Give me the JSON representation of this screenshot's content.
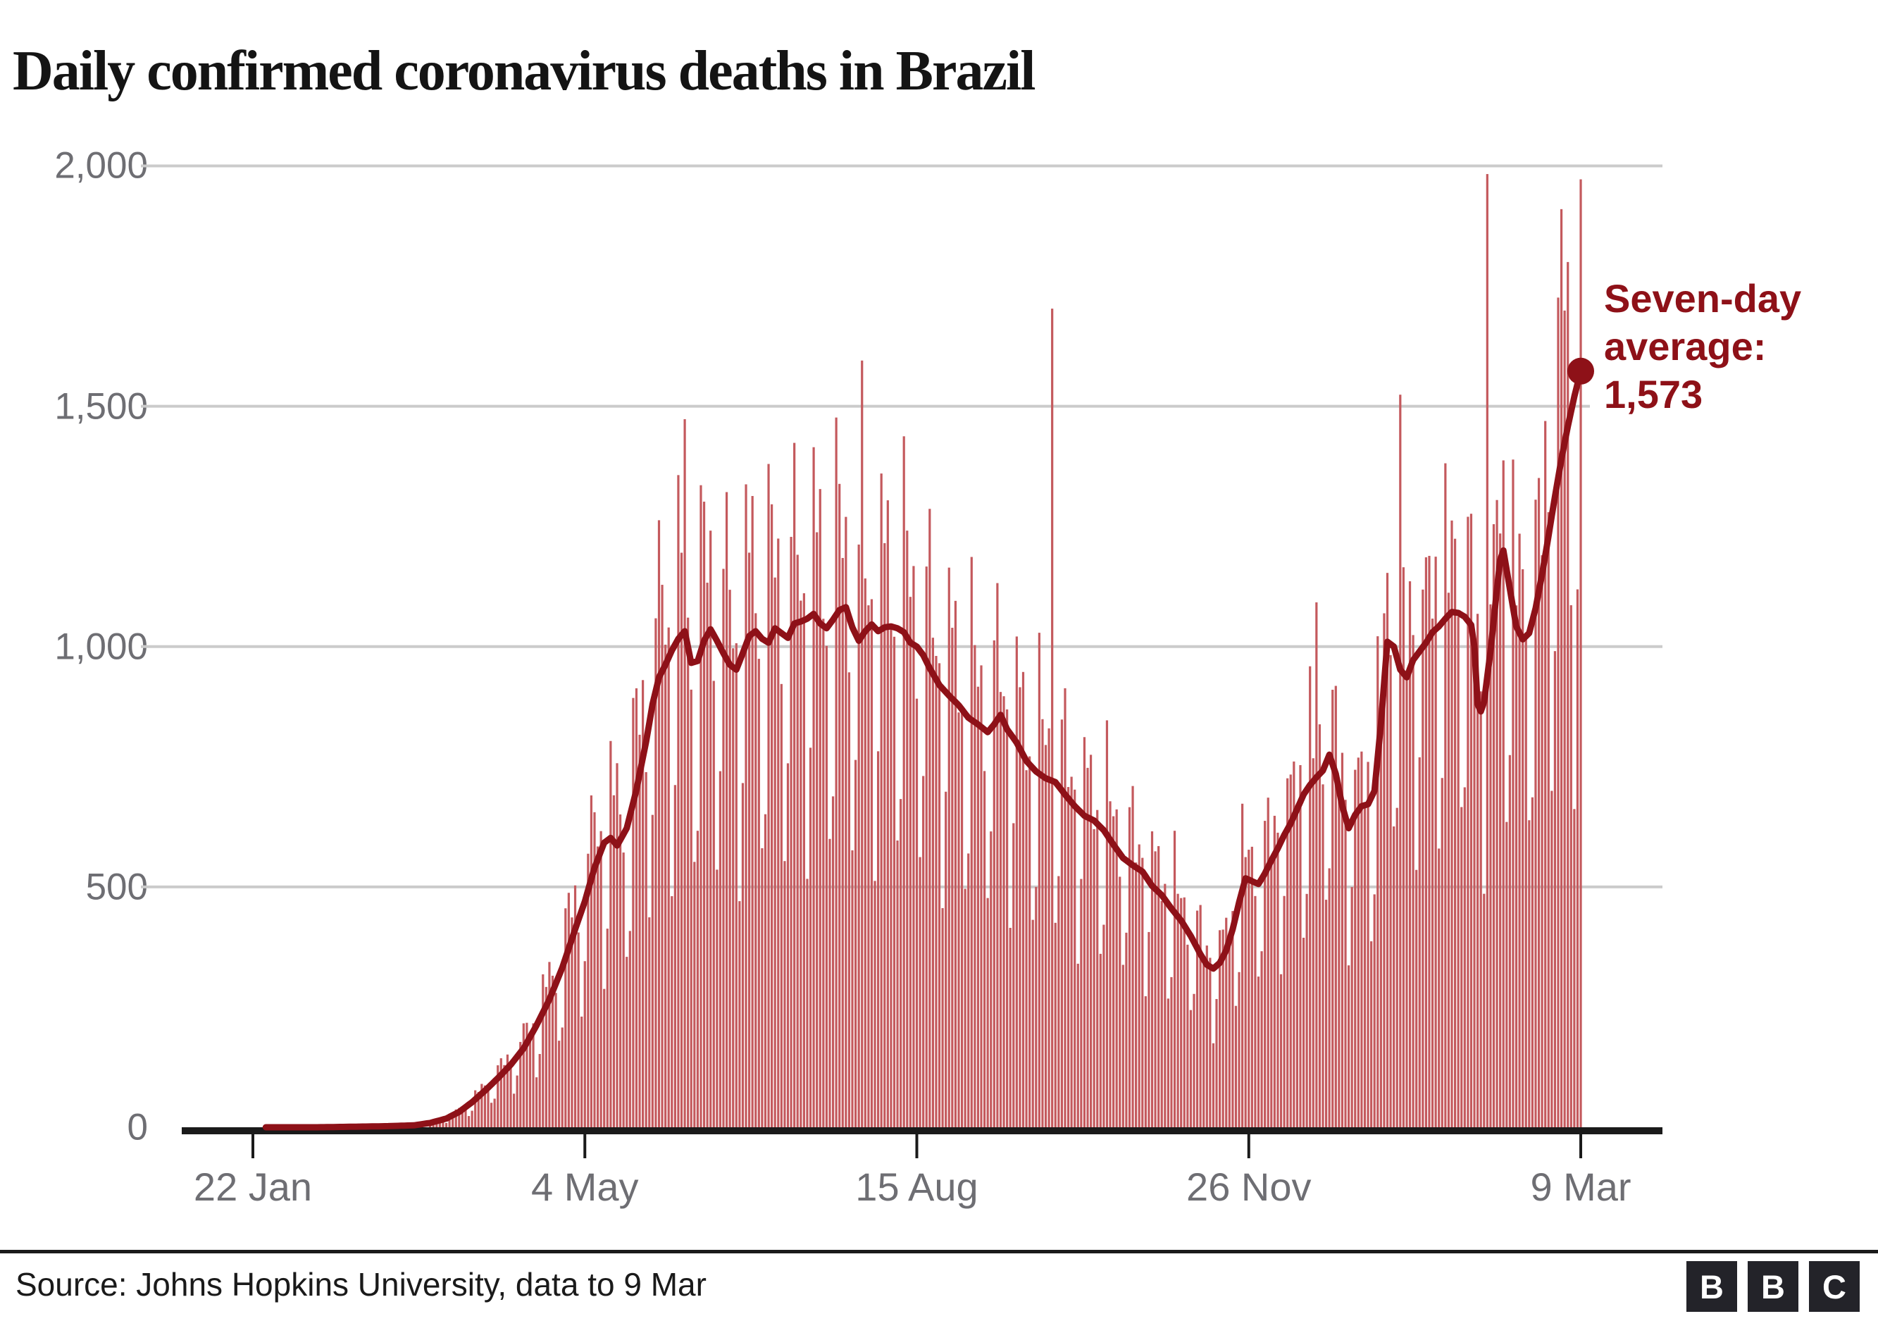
{
  "title": "Daily confirmed coronavirus deaths in Brazil",
  "annotation": {
    "line1": "Seven-day",
    "line2": "average:",
    "line3": "1,573"
  },
  "source": {
    "text": "Source: Johns Hopkins University, data to 9 Mar"
  },
  "logo": {
    "letters": [
      "B",
      "B",
      "C"
    ]
  },
  "colors": {
    "bar": "#C4595D",
    "avg_line": "#8E1118",
    "annotation_text": "#8E1118",
    "title_text": "#141414",
    "axis_labels": "#6E6E73",
    "gridline": "#CBCBCB",
    "axis_line": "#1A1A1A",
    "source_text": "#1A1A1A",
    "logo_block": "#232329"
  },
  "chart_data": {
    "type": "bar",
    "title": "Daily confirmed coronavirus deaths in Brazil",
    "xlabel": "",
    "ylabel": "",
    "x_axis": {
      "start_date": "22 Jan",
      "end_date": "9 Mar",
      "tick_labels": [
        "22 Jan",
        "4 May",
        "15 Aug",
        "26 Nov",
        "9 Mar"
      ],
      "tick_days": [
        0,
        103,
        206,
        309,
        412
      ],
      "total_days": 412
    },
    "y_axis": {
      "tick_labels": [
        "0",
        "500",
        "1,000",
        "1,500",
        "2,000"
      ],
      "tick_values": [
        0,
        500,
        1000,
        1500,
        2000
      ],
      "ylim": [
        0,
        2060
      ],
      "grid": true
    },
    "series": [
      {
        "name": "Daily confirmed deaths",
        "type": "bar"
      },
      {
        "name": "Seven-day average",
        "type": "line",
        "final_value": 1573,
        "final_label": "Seven-day average: 1,573"
      }
    ],
    "seven_day_avg_points": [
      [
        0,
        0
      ],
      [
        20,
        0
      ],
      [
        40,
        2
      ],
      [
        50,
        4
      ],
      [
        55,
        9
      ],
      [
        60,
        18
      ],
      [
        64,
        32
      ],
      [
        68,
        52
      ],
      [
        72,
        76
      ],
      [
        76,
        102
      ],
      [
        80,
        130
      ],
      [
        84,
        164
      ],
      [
        88,
        212
      ],
      [
        92,
        266
      ],
      [
        96,
        332
      ],
      [
        100,
        412
      ],
      [
        103,
        470
      ],
      [
        106,
        540
      ],
      [
        109,
        592
      ],
      [
        111,
        602
      ],
      [
        113,
        586
      ],
      [
        116,
        622
      ],
      [
        119,
        702
      ],
      [
        122,
        802
      ],
      [
        124,
        880
      ],
      [
        126,
        936
      ],
      [
        128,
        962
      ],
      [
        130,
        992
      ],
      [
        132,
        1016
      ],
      [
        134,
        1032
      ],
      [
        136,
        966
      ],
      [
        138,
        970
      ],
      [
        140,
        1012
      ],
      [
        142,
        1036
      ],
      [
        144,
        1012
      ],
      [
        146,
        986
      ],
      [
        148,
        962
      ],
      [
        150,
        952
      ],
      [
        152,
        986
      ],
      [
        154,
        1022
      ],
      [
        156,
        1032
      ],
      [
        158,
        1016
      ],
      [
        160,
        1008
      ],
      [
        162,
        1038
      ],
      [
        164,
        1028
      ],
      [
        166,
        1018
      ],
      [
        168,
        1048
      ],
      [
        170,
        1052
      ],
      [
        172,
        1058
      ],
      [
        174,
        1068
      ],
      [
        176,
        1048
      ],
      [
        178,
        1038
      ],
      [
        180,
        1056
      ],
      [
        182,
        1076
      ],
      [
        184,
        1082
      ],
      [
        186,
        1040
      ],
      [
        188,
        1012
      ],
      [
        190,
        1032
      ],
      [
        192,
        1046
      ],
      [
        194,
        1032
      ],
      [
        196,
        1040
      ],
      [
        198,
        1042
      ],
      [
        200,
        1038
      ],
      [
        202,
        1030
      ],
      [
        204,
        1008
      ],
      [
        206,
        1000
      ],
      [
        208,
        982
      ],
      [
        210,
        955
      ],
      [
        213,
        920
      ],
      [
        216,
        898
      ],
      [
        219,
        878
      ],
      [
        222,
        852
      ],
      [
        225,
        838
      ],
      [
        228,
        822
      ],
      [
        230,
        838
      ],
      [
        232,
        858
      ],
      [
        234,
        828
      ],
      [
        237,
        800
      ],
      [
        240,
        762
      ],
      [
        243,
        740
      ],
      [
        246,
        726
      ],
      [
        249,
        718
      ],
      [
        252,
        692
      ],
      [
        255,
        668
      ],
      [
        258,
        648
      ],
      [
        261,
        638
      ],
      [
        264,
        618
      ],
      [
        267,
        588
      ],
      [
        270,
        560
      ],
      [
        273,
        545
      ],
      [
        276,
        532
      ],
      [
        279,
        502
      ],
      [
        282,
        483
      ],
      [
        285,
        455
      ],
      [
        288,
        430
      ],
      [
        291,
        398
      ],
      [
        294,
        360
      ],
      [
        296,
        338
      ],
      [
        298,
        330
      ],
      [
        300,
        342
      ],
      [
        302,
        368
      ],
      [
        304,
        412
      ],
      [
        306,
        468
      ],
      [
        308,
        518
      ],
      [
        310,
        512
      ],
      [
        312,
        506
      ],
      [
        314,
        528
      ],
      [
        316,
        555
      ],
      [
        318,
        580
      ],
      [
        320,
        608
      ],
      [
        322,
        632
      ],
      [
        324,
        662
      ],
      [
        326,
        692
      ],
      [
        328,
        712
      ],
      [
        330,
        728
      ],
      [
        332,
        742
      ],
      [
        334,
        775
      ],
      [
        336,
        735
      ],
      [
        338,
        668
      ],
      [
        340,
        622
      ],
      [
        342,
        650
      ],
      [
        344,
        668
      ],
      [
        346,
        672
      ],
      [
        348,
        700
      ],
      [
        350,
        840
      ],
      [
        352,
        1010
      ],
      [
        354,
        1000
      ],
      [
        356,
        952
      ],
      [
        358,
        936
      ],
      [
        360,
        972
      ],
      [
        362,
        990
      ],
      [
        364,
        1008
      ],
      [
        366,
        1030
      ],
      [
        368,
        1042
      ],
      [
        370,
        1058
      ],
      [
        372,
        1072
      ],
      [
        374,
        1070
      ],
      [
        376,
        1062
      ],
      [
        378,
        1045
      ],
      [
        379,
        1000
      ],
      [
        380,
        880
      ],
      [
        381,
        865
      ],
      [
        382,
        885
      ],
      [
        384,
        990
      ],
      [
        386,
        1120
      ],
      [
        387,
        1180
      ],
      [
        388,
        1200
      ],
      [
        389,
        1160
      ],
      [
        390,
        1120
      ],
      [
        392,
        1042
      ],
      [
        394,
        1015
      ],
      [
        396,
        1028
      ],
      [
        398,
        1080
      ],
      [
        400,
        1150
      ],
      [
        402,
        1230
      ],
      [
        404,
        1312
      ],
      [
        406,
        1390
      ],
      [
        408,
        1458
      ],
      [
        410,
        1520
      ],
      [
        412,
        1573
      ]
    ],
    "daily_bars": {
      "first_day": 55,
      "last_day": 412,
      "start_weekday": 3,
      "weekday_factors": [
        0.55,
        0.7,
        1.24,
        1.21,
        1.16,
        1.12,
        1.02
      ],
      "jitter": {
        "a1": 0.09,
        "f1": 2.4,
        "a2": 0.05,
        "f2": 0.91
      },
      "outliers": {
        "134": 1473,
        "189": 1595,
        "248": 1703,
        "330": 1092,
        "356": 1524,
        "383": 1983,
        "405": 1726,
        "406": 1910,
        "407": 1699,
        "408": 1800,
        "409": 1086,
        "410": 662,
        "411": 1119,
        "412": 1972
      }
    }
  }
}
